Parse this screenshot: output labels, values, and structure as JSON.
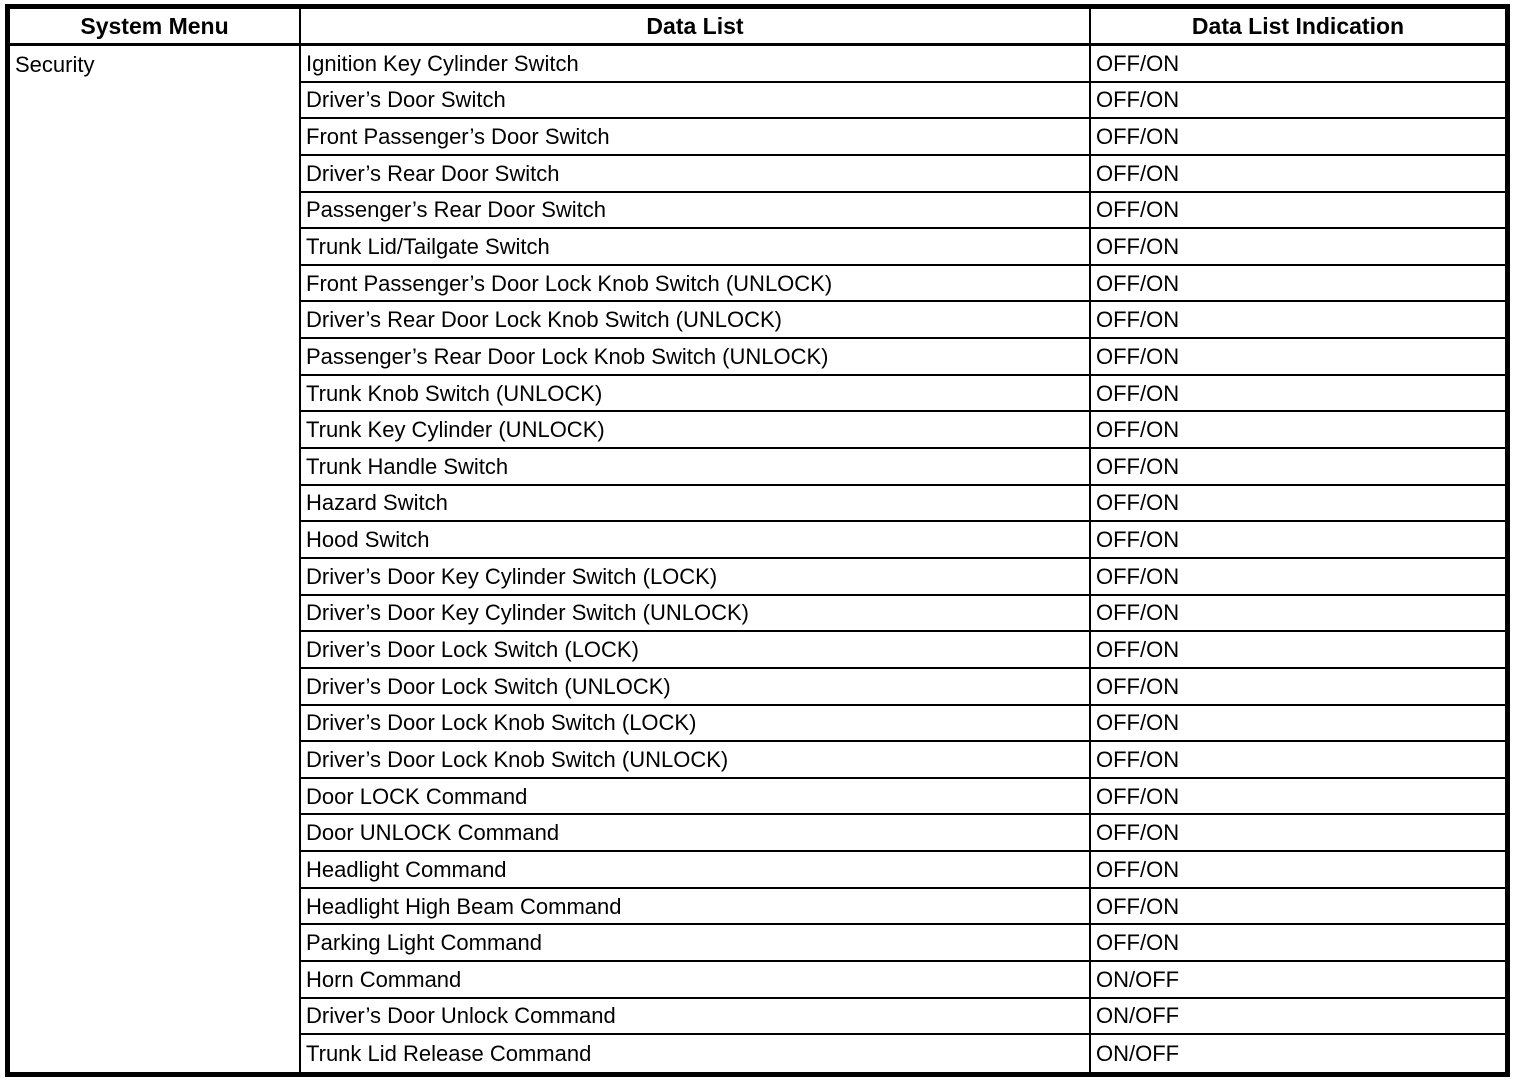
{
  "table": {
    "headers": {
      "system_menu": "System Menu",
      "data_list": "Data List",
      "indication": "Data List Indication"
    },
    "system_menu_value": "Security",
    "rows": [
      {
        "data_list": "Ignition Key Cylinder Switch",
        "indication": "OFF/ON"
      },
      {
        "data_list": "Driver’s Door Switch",
        "indication": "OFF/ON"
      },
      {
        "data_list": "Front Passenger’s Door Switch",
        "indication": "OFF/ON"
      },
      {
        "data_list": "Driver’s Rear Door Switch",
        "indication": "OFF/ON"
      },
      {
        "data_list": "Passenger’s Rear Door Switch",
        "indication": "OFF/ON"
      },
      {
        "data_list": "Trunk Lid/Tailgate Switch",
        "indication": "OFF/ON"
      },
      {
        "data_list": "Front Passenger’s Door Lock Knob Switch (UNLOCK)",
        "indication": "OFF/ON"
      },
      {
        "data_list": "Driver’s Rear Door Lock Knob Switch (UNLOCK)",
        "indication": "OFF/ON"
      },
      {
        "data_list": "Passenger’s Rear Door Lock Knob Switch (UNLOCK)",
        "indication": "OFF/ON"
      },
      {
        "data_list": "Trunk Knob Switch (UNLOCK)",
        "indication": "OFF/ON"
      },
      {
        "data_list": "Trunk Key Cylinder (UNLOCK)",
        "indication": "OFF/ON"
      },
      {
        "data_list": "Trunk Handle Switch",
        "indication": "OFF/ON"
      },
      {
        "data_list": "Hazard Switch",
        "indication": "OFF/ON"
      },
      {
        "data_list": "Hood Switch",
        "indication": "OFF/ON"
      },
      {
        "data_list": "Driver’s Door Key Cylinder Switch (LOCK)",
        "indication": "OFF/ON"
      },
      {
        "data_list": "Driver’s Door Key Cylinder Switch (UNLOCK)",
        "indication": "OFF/ON"
      },
      {
        "data_list": "Driver’s Door Lock Switch (LOCK)",
        "indication": "OFF/ON"
      },
      {
        "data_list": "Driver’s Door Lock Switch (UNLOCK)",
        "indication": "OFF/ON"
      },
      {
        "data_list": "Driver’s Door Lock Knob Switch (LOCK)",
        "indication": "OFF/ON"
      },
      {
        "data_list": "Driver’s Door Lock Knob Switch (UNLOCK)",
        "indication": "OFF/ON"
      },
      {
        "data_list": "Door LOCK Command",
        "indication": "OFF/ON"
      },
      {
        "data_list": "Door UNLOCK Command",
        "indication": "OFF/ON"
      },
      {
        "data_list": "Headlight Command",
        "indication": "OFF/ON"
      },
      {
        "data_list": "Headlight High Beam Command",
        "indication": "OFF/ON"
      },
      {
        "data_list": "Parking Light Command",
        "indication": "OFF/ON"
      },
      {
        "data_list": "Horn Command",
        "indication": "ON/OFF"
      },
      {
        "data_list": "Driver’s Door Unlock Command",
        "indication": "ON/OFF"
      },
      {
        "data_list": "Trunk Lid Release Command",
        "indication": "ON/OFF"
      }
    ]
  }
}
